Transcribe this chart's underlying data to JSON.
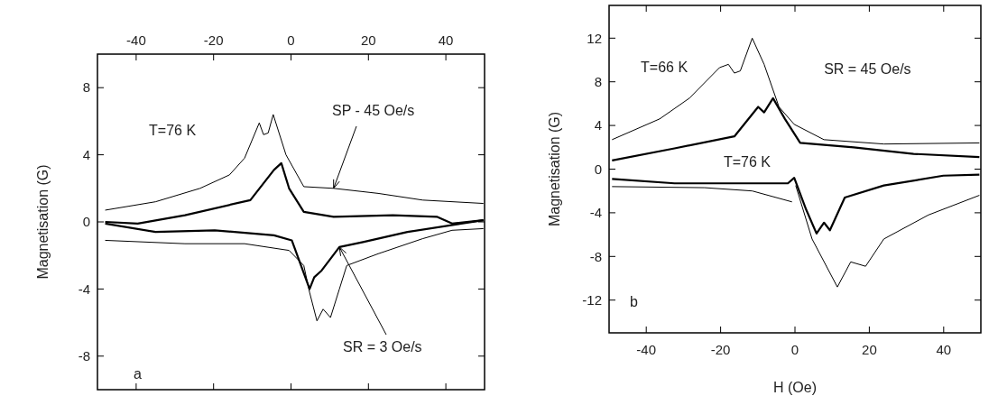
{
  "chart_data": [
    {
      "type": "line",
      "ylabel": "Magnetisation (G)",
      "xlim": [
        -50,
        50
      ],
      "xticks": [
        -40,
        -20,
        0,
        20,
        40
      ],
      "ylim": [
        -10,
        10
      ],
      "yticks": [
        -8,
        -4,
        0,
        4,
        8
      ],
      "grid": false,
      "line_style": "solid",
      "marker": "none",
      "annotations": [
        "T=76 K",
        {
          "text": "SP - 45 Oe/s",
          "x": 11,
          "y": 2.0
        },
        {
          "text": "SR = 3 Oe/s",
          "x": 12.5,
          "y": -1.5
        },
        "a"
      ],
      "series": [
        {
          "color": "#000000",
          "x": [
            -48,
            -35,
            -23.5,
            -15.9,
            -12.0,
            -8.2,
            -7.1,
            -5.9,
            -4.6,
            -1.3,
            3.3,
            11.0,
            22.5,
            34,
            49.7
          ],
          "values": [
            0.7,
            1.2,
            2.0,
            2.8,
            3.8,
            5.9,
            5.2,
            5.3,
            6.4,
            4.0,
            2.1,
            2.0,
            1.7,
            1.3,
            1.1
          ]
        },
        {
          "color": "#000000",
          "x": [
            -48,
            -27.4,
            -12.0,
            -0.5,
            3.3,
            4.8,
            6.7,
            8.3,
            10.2,
            12.5,
            14.4,
            22.5,
            34,
            41.6,
            49.7
          ],
          "values": [
            -1.1,
            -1.3,
            -1.3,
            -1.7,
            -2.6,
            -4.2,
            -5.9,
            -5.2,
            -5.7,
            -4.0,
            -2.6,
            -1.9,
            -1.0,
            -0.5,
            -0.4
          ]
        },
        {
          "color": "#000000",
          "x": [
            -48,
            -39.6,
            -27.4,
            -10.5,
            -4.4,
            -2.5,
            -0.5,
            3.3,
            11,
            26.3,
            37.8,
            41.6,
            49.7
          ],
          "values": [
            0,
            -0.1,
            0.4,
            1.3,
            3.1,
            3.5,
            2.0,
            0.6,
            0.3,
            0.4,
            0.3,
            -0.1,
            0.1
          ]
        },
        {
          "color": "#000000",
          "x": [
            -48,
            -35,
            -19.7,
            -4.4,
            0.2,
            4.8,
            6.0,
            7.9,
            12.5,
            18.6,
            30.1,
            49.7
          ],
          "values": [
            -0.1,
            -0.6,
            -0.5,
            -0.8,
            -1.1,
            -4.0,
            -3.3,
            -2.9,
            -1.5,
            -1.2,
            -0.6,
            0.1
          ]
        }
      ]
    },
    {
      "type": "line",
      "ylabel": "Magnetisation (G)",
      "xlabel": "H (Oe)",
      "xlim": [
        -50,
        50
      ],
      "xticks": [
        -40,
        -20,
        0,
        20,
        40
      ],
      "ylim": [
        -15,
        15
      ],
      "yticks": [
        -12,
        -8,
        -4,
        0,
        4,
        8,
        12
      ],
      "grid": false,
      "line_style": "solid",
      "marker": "none",
      "annotations": [
        "T=66 K",
        "SR = 45 Oe/s",
        "T=76 K",
        "b"
      ],
      "series": [
        {
          "color": "#000000",
          "x": [
            -49.2,
            -36.4,
            -28.4,
            -20.3,
            -17.9,
            -16.3,
            -14.7,
            -11.5,
            -8.3,
            -4.3,
            -0.2,
            7.8,
            23.9,
            49.6
          ],
          "values": [
            2.7,
            4.6,
            6.5,
            9.3,
            9.6,
            8.8,
            9.0,
            12.0,
            9.6,
            5.7,
            4.1,
            2.7,
            2.3,
            2.4
          ]
        },
        {
          "color": "#000000",
          "x": [
            -49.2,
            -24.3,
            -11.5,
            -0.8,
            0,
            0.2,
            4.6,
            11.4,
            15.0,
            19.0,
            23.9,
            35.9,
            49.6
          ],
          "values": [
            -1.6,
            -1.7,
            -2.0,
            -3.0,
            null,
            -1.5,
            -6.4,
            -10.8,
            -8.5,
            -8.9,
            -6.4,
            -4.2,
            -2.4
          ]
        },
        {
          "color": "#000000",
          "x": [
            -49.2,
            -32.4,
            -16.3,
            -9.9,
            -8.3,
            -5.9,
            -2.7,
            1.4,
            15.8,
            31.9,
            49.6
          ],
          "values": [
            0.8,
            1.9,
            3.0,
            5.7,
            5.2,
            6.5,
            4.6,
            2.4,
            2.0,
            1.4,
            1.1
          ]
        },
        {
          "color": "#000000",
          "x": [
            -49.2,
            -32.4,
            -1.9,
            -0.2,
            3.0,
            5.8,
            7.8,
            9.4,
            13.4,
            23.9,
            39.9,
            49.6
          ],
          "values": [
            -0.9,
            -1.3,
            -1.3,
            -0.8,
            -3.7,
            -5.9,
            -4.9,
            -5.6,
            -2.6,
            -1.5,
            -0.6,
            -0.5
          ]
        }
      ]
    }
  ]
}
